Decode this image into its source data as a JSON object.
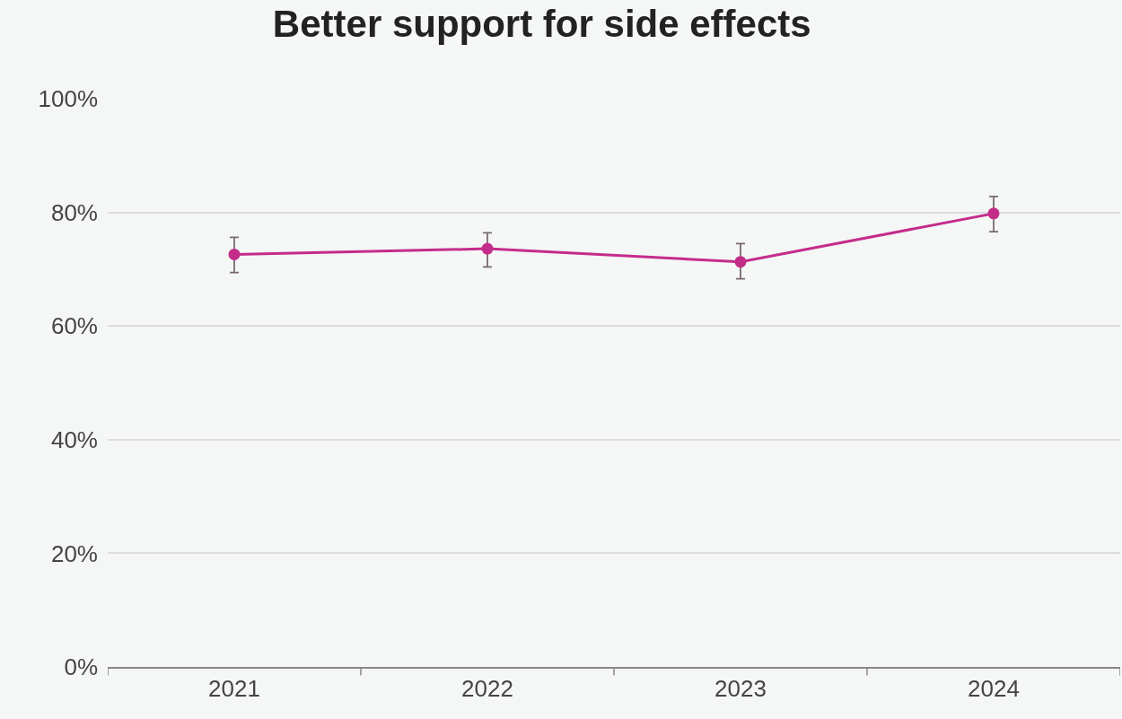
{
  "chart_data": {
    "type": "line",
    "title": "Better support for side effects",
    "categories": [
      "2021",
      "2022",
      "2023",
      "2024"
    ],
    "series": [
      {
        "color": "#c42c8a",
        "values": [
          72.6,
          73.6,
          71.3,
          79.8
        ],
        "errors": [
          [
            69.4,
            75.6
          ],
          [
            70.4,
            76.4
          ],
          [
            68.3,
            74.5
          ],
          [
            76.6,
            82.8
          ]
        ]
      }
    ],
    "ylim": [
      0,
      100
    ],
    "yticks": [
      {
        "value": 0,
        "label": "0%"
      },
      {
        "value": 20,
        "label": "20%"
      },
      {
        "value": 40,
        "label": "40%"
      },
      {
        "value": 60,
        "label": "60%"
      },
      {
        "value": 80,
        "label": "80%"
      },
      {
        "value": 100,
        "label": "100%"
      }
    ],
    "grid": "y",
    "legend": false,
    "marker": "circle",
    "line_style": "solid"
  }
}
